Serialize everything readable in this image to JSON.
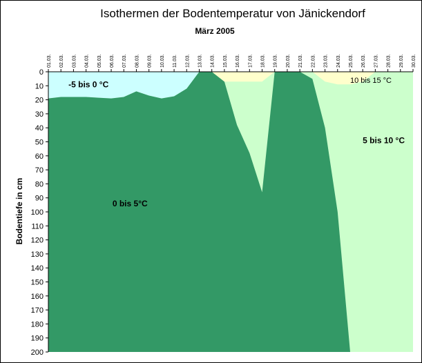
{
  "chart_data": {
    "type": "area",
    "title": "Isothermen der Bodentemperatur von Jänickendorf",
    "subtitle": "März 2005",
    "ylabel": "Bodentiefe in cm",
    "xlabel": "",
    "categories": [
      "01.03.",
      "02.03.",
      "03.03.",
      "04.03.",
      "05.03.",
      "06.03.",
      "07.03.",
      "08.03.",
      "09.03.",
      "10.03.",
      "11.03.",
      "12.03.",
      "13.03.",
      "14.03.",
      "15.03.",
      "16.03.",
      "17.03.",
      "18.03.",
      "19.03.",
      "20.03.",
      "21.03.",
      "22.03.",
      "23.03.",
      "24.03.",
      "25.03.",
      "26.03.",
      "27.03.",
      "28.03.",
      "29.03.",
      "30.03."
    ],
    "yticks": [
      0,
      10,
      20,
      30,
      40,
      50,
      60,
      70,
      80,
      90,
      100,
      110,
      120,
      130,
      140,
      150,
      160,
      170,
      180,
      190,
      200
    ],
    "ylim": [
      0,
      200
    ],
    "y_inverted": true,
    "background_color": "#ccffcc",
    "series": [
      {
        "name": "-5 bis 0 °C",
        "color": "#ccffff",
        "points": [
          [
            1,
            0
          ],
          [
            1,
            19
          ],
          [
            2,
            18
          ],
          [
            3,
            18
          ],
          [
            4,
            18
          ],
          [
            5,
            18.5
          ],
          [
            6,
            19
          ],
          [
            7,
            18
          ],
          [
            8,
            14
          ],
          [
            9,
            17
          ],
          [
            10,
            19
          ],
          [
            11,
            17.5
          ],
          [
            12,
            12
          ],
          [
            13,
            0
          ]
        ]
      },
      {
        "name": "0 bis 5°C",
        "color": "#339966",
        "points": [
          [
            1,
            19
          ],
          [
            2,
            18
          ],
          [
            3,
            18
          ],
          [
            4,
            18
          ],
          [
            5,
            18.5
          ],
          [
            6,
            19
          ],
          [
            7,
            18
          ],
          [
            8,
            14
          ],
          [
            9,
            17
          ],
          [
            10,
            19
          ],
          [
            11,
            17.5
          ],
          [
            12,
            12
          ],
          [
            13,
            0
          ],
          [
            14,
            0
          ],
          [
            15,
            7
          ],
          [
            16,
            38
          ],
          [
            17,
            58
          ],
          [
            18,
            86
          ],
          [
            19,
            0
          ],
          [
            20,
            0
          ],
          [
            21,
            0
          ],
          [
            22,
            5
          ],
          [
            23,
            40
          ],
          [
            24,
            100
          ],
          [
            25,
            200
          ],
          [
            1,
            200
          ]
        ]
      },
      {
        "name": "10 bis 15 °C",
        "color": "#ffffcc",
        "points": [
          [
            14,
            0
          ],
          [
            15,
            7
          ],
          [
            16,
            7
          ],
          [
            17,
            7
          ],
          [
            18,
            7
          ],
          [
            19,
            0
          ]
        ]
      },
      {
        "name": "10 bis 15 °C",
        "color": "#ffffcc",
        "points": [
          [
            23,
            7
          ],
          [
            24,
            9
          ],
          [
            25,
            9
          ],
          [
            26,
            7
          ],
          [
            27,
            0
          ],
          [
            22,
            0
          ]
        ]
      }
    ],
    "labels": [
      {
        "text": "-5 bis 0 °C",
        "x": 2.6,
        "y": 9
      },
      {
        "text": "0 bis 5°C",
        "x": 6.1,
        "y": 94
      },
      {
        "text": "5 bis 10 °C",
        "x": 26.0,
        "y": 49
      },
      {
        "text": "10 bis 15 °C",
        "x": 25.0,
        "y": 6
      }
    ]
  }
}
